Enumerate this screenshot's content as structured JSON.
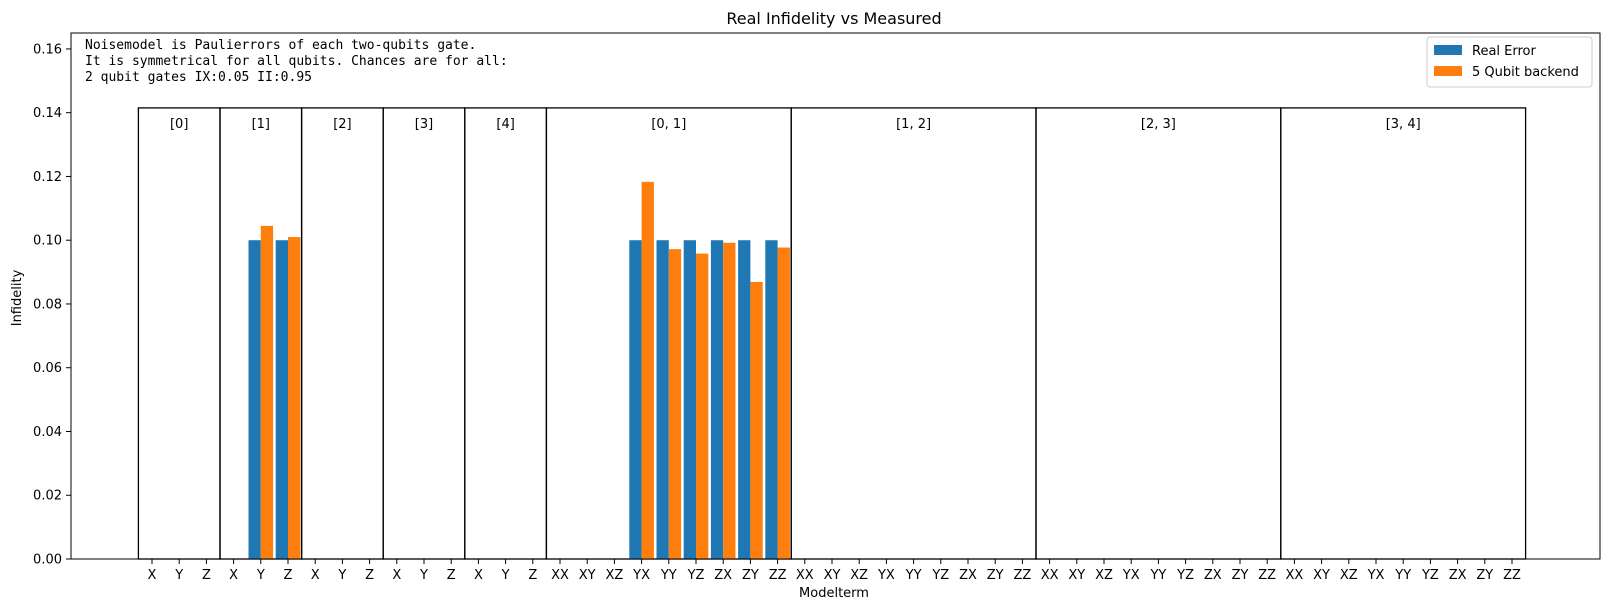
{
  "chart_data": {
    "type": "bar",
    "title": "Real Infidelity vs Measured",
    "xlabel": "Modelterm",
    "ylabel": "Infidelity",
    "ylim": [
      0,
      0.165
    ],
    "yticks": [
      "0.00",
      "0.02",
      "0.04",
      "0.06",
      "0.08",
      "0.10",
      "0.12",
      "0.14",
      "0.16"
    ],
    "ytick_values": [
      0,
      0.02,
      0.04,
      0.06,
      0.08,
      0.1,
      0.12,
      0.14,
      0.16
    ],
    "legend_position": "top-right",
    "annotation": [
      "Noisemodel is Paulierrors of each two-qubits gate.",
      "It is symmetrical for all qubits. Chances are for all:",
      "2 qubit gates IX:0.05   II:0.95"
    ],
    "group_box_top": 0.1415,
    "groups": [
      {
        "label": "[0]",
        "terms": [
          "X",
          "Y",
          "Z"
        ]
      },
      {
        "label": "[1]",
        "terms": [
          "X",
          "Y",
          "Z"
        ]
      },
      {
        "label": "[2]",
        "terms": [
          "X",
          "Y",
          "Z"
        ]
      },
      {
        "label": "[3]",
        "terms": [
          "X",
          "Y",
          "Z"
        ]
      },
      {
        "label": "[4]",
        "terms": [
          "X",
          "Y",
          "Z"
        ]
      },
      {
        "label": "[0, 1]",
        "terms": [
          "XX",
          "XY",
          "XZ",
          "YX",
          "YY",
          "YZ",
          "ZX",
          "ZY",
          "ZZ"
        ]
      },
      {
        "label": "[1, 2]",
        "terms": [
          "XX",
          "XY",
          "XZ",
          "YX",
          "YY",
          "YZ",
          "ZX",
          "ZY",
          "ZZ"
        ]
      },
      {
        "label": "[2, 3]",
        "terms": [
          "XX",
          "XY",
          "XZ",
          "YX",
          "YY",
          "YZ",
          "ZX",
          "ZY",
          "ZZ"
        ]
      },
      {
        "label": "[3, 4]",
        "terms": [
          "XX",
          "XY",
          "XZ",
          "YX",
          "YY",
          "YZ",
          "ZX",
          "ZY",
          "ZZ"
        ]
      }
    ],
    "series": [
      {
        "name": "Real Error",
        "color": "#1f77b4",
        "values": [
          0,
          0,
          0,
          0,
          0.1,
          0.1,
          0,
          0,
          0,
          0,
          0,
          0,
          0,
          0,
          0,
          0,
          0,
          0,
          0.1,
          0.1,
          0.1,
          0.1,
          0.1,
          0.1,
          0,
          0,
          0,
          0,
          0,
          0,
          0,
          0,
          0,
          0,
          0,
          0,
          0,
          0,
          0,
          0,
          0,
          0,
          0,
          0,
          0,
          0,
          0,
          0,
          0,
          0,
          0
        ]
      },
      {
        "name": "5 Qubit backend",
        "color": "#ff7f0e",
        "values": [
          0,
          0,
          0,
          0,
          0.1045,
          0.101,
          0,
          0,
          0,
          0,
          0,
          0,
          0,
          0,
          0,
          0,
          0,
          0,
          0.1183,
          0.0972,
          0.0958,
          0.0992,
          0.0869,
          0.0977,
          0,
          0,
          0,
          0,
          0,
          0,
          0,
          0,
          0,
          0,
          0,
          0,
          0,
          0,
          0,
          0,
          0,
          0,
          0,
          0,
          0,
          0,
          0,
          0,
          0,
          0,
          0
        ]
      }
    ]
  }
}
